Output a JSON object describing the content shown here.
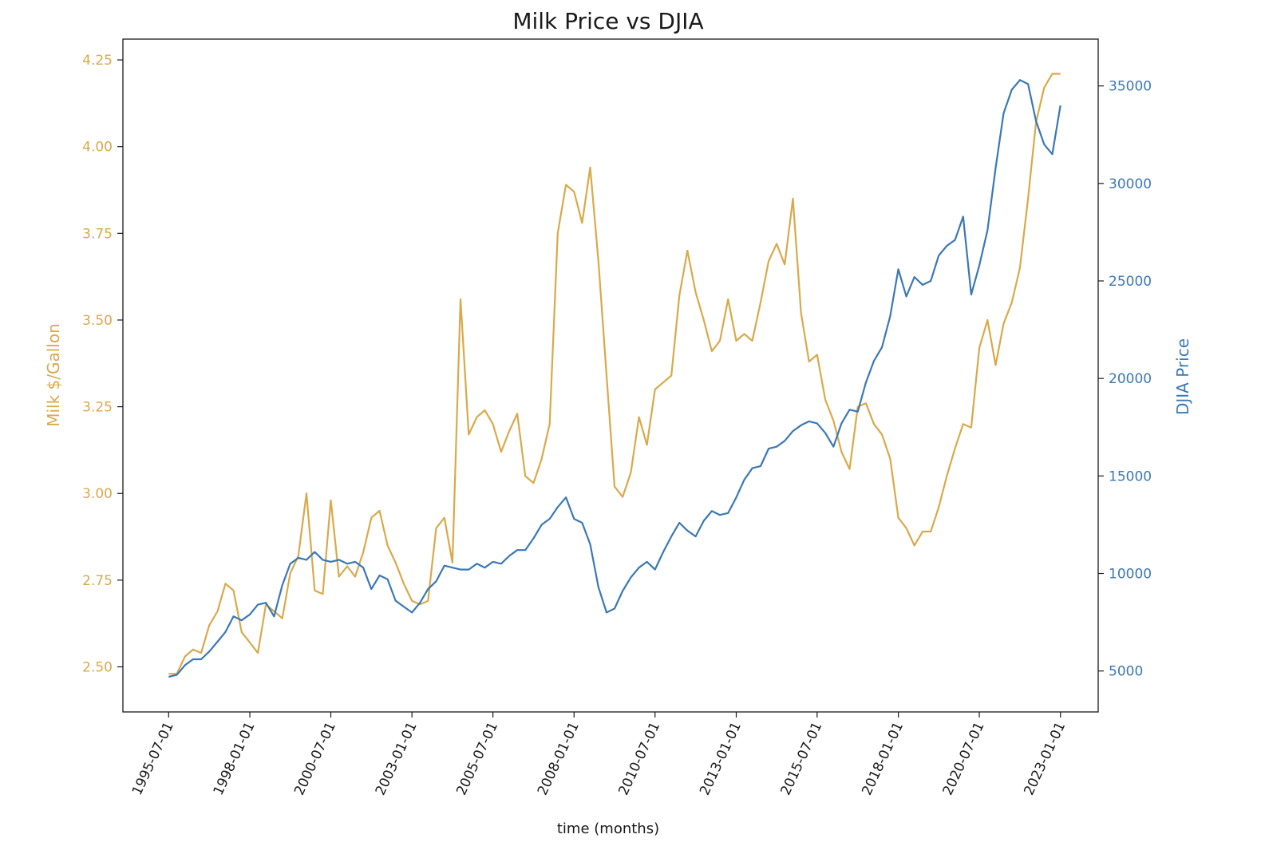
{
  "chart_data": {
    "type": "line",
    "title": "Milk Price vs DJIA",
    "xlabel": "time (months)",
    "ylabel_left": "Milk $/Gallon",
    "ylabel_right": "DJIA Price",
    "x_ticks": [
      "1995-07-01",
      "1998-01-01",
      "2000-07-01",
      "2003-01-01",
      "2005-07-01",
      "2008-01-01",
      "2010-07-01",
      "2013-01-01",
      "2015-07-01",
      "2018-01-01",
      "2020-07-01",
      "2023-01-01"
    ],
    "y_left_ticks": [
      "2.50",
      "2.75",
      "3.00",
      "3.25",
      "3.50",
      "3.75",
      "4.00",
      "4.25"
    ],
    "y_left_range": [
      2.37,
      4.31
    ],
    "y_right_ticks": [
      "5000",
      "10000",
      "15000",
      "20000",
      "25000",
      "30000",
      "35000"
    ],
    "y_right_range": [
      2900,
      37400
    ],
    "x_range": [
      "1994-02-01",
      "2024-03-01"
    ],
    "grid": false,
    "colors": {
      "milk": "#d9a94a",
      "djia": "#3a78b5",
      "axis": "#1a1a1a"
    },
    "series": [
      {
        "axis": "left",
        "color": "#d9a94a",
        "points": [
          [
            "1995-07-01",
            2.48
          ],
          [
            "1995-10-01",
            2.48
          ],
          [
            "1996-01-01",
            2.53
          ],
          [
            "1996-04-01",
            2.55
          ],
          [
            "1996-07-01",
            2.54
          ],
          [
            "1996-10-01",
            2.62
          ],
          [
            "1997-01-01",
            2.66
          ],
          [
            "1997-04-01",
            2.74
          ],
          [
            "1997-07-01",
            2.72
          ],
          [
            "1997-10-01",
            2.6
          ],
          [
            "1998-01-01",
            2.57
          ],
          [
            "1998-04-01",
            2.54
          ],
          [
            "1998-07-01",
            2.68
          ],
          [
            "1998-10-01",
            2.66
          ],
          [
            "1999-01-01",
            2.64
          ],
          [
            "1999-04-01",
            2.77
          ],
          [
            "1999-07-01",
            2.82
          ],
          [
            "1999-10-01",
            3.0
          ],
          [
            "2000-01-01",
            2.72
          ],
          [
            "2000-04-01",
            2.71
          ],
          [
            "2000-07-01",
            2.98
          ],
          [
            "2000-10-01",
            2.76
          ],
          [
            "2001-01-01",
            2.79
          ],
          [
            "2001-04-01",
            2.76
          ],
          [
            "2001-07-01",
            2.83
          ],
          [
            "2001-10-01",
            2.93
          ],
          [
            "2002-01-01",
            2.95
          ],
          [
            "2002-04-01",
            2.85
          ],
          [
            "2002-07-01",
            2.8
          ],
          [
            "2002-10-01",
            2.74
          ],
          [
            "2003-01-01",
            2.69
          ],
          [
            "2003-04-01",
            2.68
          ],
          [
            "2003-07-01",
            2.69
          ],
          [
            "2003-10-01",
            2.9
          ],
          [
            "2004-01-01",
            2.93
          ],
          [
            "2004-04-01",
            2.8
          ],
          [
            "2004-07-01",
            3.56
          ],
          [
            "2004-10-01",
            3.17
          ],
          [
            "2005-01-01",
            3.22
          ],
          [
            "2005-04-01",
            3.24
          ],
          [
            "2005-07-01",
            3.2
          ],
          [
            "2005-10-01",
            3.12
          ],
          [
            "2006-01-01",
            3.18
          ],
          [
            "2006-04-01",
            3.23
          ],
          [
            "2006-07-01",
            3.05
          ],
          [
            "2006-10-01",
            3.03
          ],
          [
            "2007-01-01",
            3.1
          ],
          [
            "2007-04-01",
            3.2
          ],
          [
            "2007-07-01",
            3.75
          ],
          [
            "2007-10-01",
            3.89
          ],
          [
            "2008-01-01",
            3.87
          ],
          [
            "2008-04-01",
            3.78
          ],
          [
            "2008-07-01",
            3.94
          ],
          [
            "2008-10-01",
            3.67
          ],
          [
            "2009-01-01",
            3.34
          ],
          [
            "2009-04-01",
            3.02
          ],
          [
            "2009-07-01",
            2.99
          ],
          [
            "2009-10-01",
            3.06
          ],
          [
            "2010-01-01",
            3.22
          ],
          [
            "2010-04-01",
            3.14
          ],
          [
            "2010-07-01",
            3.3
          ],
          [
            "2010-10-01",
            3.32
          ],
          [
            "2011-01-01",
            3.34
          ],
          [
            "2011-04-01",
            3.57
          ],
          [
            "2011-07-01",
            3.7
          ],
          [
            "2011-10-01",
            3.58
          ],
          [
            "2012-01-01",
            3.5
          ],
          [
            "2012-04-01",
            3.41
          ],
          [
            "2012-07-01",
            3.44
          ],
          [
            "2012-10-01",
            3.56
          ],
          [
            "2013-01-01",
            3.44
          ],
          [
            "2013-04-01",
            3.46
          ],
          [
            "2013-07-01",
            3.44
          ],
          [
            "2013-10-01",
            3.55
          ],
          [
            "2014-01-01",
            3.67
          ],
          [
            "2014-04-01",
            3.72
          ],
          [
            "2014-07-01",
            3.66
          ],
          [
            "2014-10-01",
            3.85
          ],
          [
            "2015-01-01",
            3.52
          ],
          [
            "2015-04-01",
            3.38
          ],
          [
            "2015-07-01",
            3.4
          ],
          [
            "2015-10-01",
            3.27
          ],
          [
            "2016-01-01",
            3.21
          ],
          [
            "2016-04-01",
            3.12
          ],
          [
            "2016-07-01",
            3.07
          ],
          [
            "2016-10-01",
            3.25
          ],
          [
            "2017-01-01",
            3.26
          ],
          [
            "2017-04-01",
            3.2
          ],
          [
            "2017-07-01",
            3.17
          ],
          [
            "2017-10-01",
            3.1
          ],
          [
            "2018-01-01",
            2.93
          ],
          [
            "2018-04-01",
            2.9
          ],
          [
            "2018-07-01",
            2.85
          ],
          [
            "2018-10-01",
            2.89
          ],
          [
            "2019-01-01",
            2.89
          ],
          [
            "2019-04-01",
            2.96
          ],
          [
            "2019-07-01",
            3.05
          ],
          [
            "2019-10-01",
            3.13
          ],
          [
            "2020-01-01",
            3.2
          ],
          [
            "2020-04-01",
            3.19
          ],
          [
            "2020-07-01",
            3.42
          ],
          [
            "2020-10-01",
            3.5
          ],
          [
            "2021-01-01",
            3.37
          ],
          [
            "2021-04-01",
            3.49
          ],
          [
            "2021-07-01",
            3.55
          ],
          [
            "2021-10-01",
            3.65
          ],
          [
            "2022-01-01",
            3.85
          ],
          [
            "2022-04-01",
            4.07
          ],
          [
            "2022-07-01",
            4.17
          ],
          [
            "2022-10-01",
            4.21
          ],
          [
            "2023-01-01",
            4.21
          ]
        ]
      },
      {
        "axis": "right",
        "color": "#3a78b5",
        "points": [
          [
            "1995-07-01",
            4700
          ],
          [
            "1995-10-01",
            4800
          ],
          [
            "1996-01-01",
            5300
          ],
          [
            "1996-04-01",
            5600
          ],
          [
            "1996-07-01",
            5600
          ],
          [
            "1996-10-01",
            6000
          ],
          [
            "1997-01-01",
            6500
          ],
          [
            "1997-04-01",
            7000
          ],
          [
            "1997-07-01",
            7800
          ],
          [
            "1997-10-01",
            7600
          ],
          [
            "1998-01-01",
            7900
          ],
          [
            "1998-04-01",
            8400
          ],
          [
            "1998-07-01",
            8500
          ],
          [
            "1998-10-01",
            7800
          ],
          [
            "1999-01-01",
            9400
          ],
          [
            "1999-04-01",
            10500
          ],
          [
            "1999-07-01",
            10800
          ],
          [
            "1999-10-01",
            10700
          ],
          [
            "2000-01-01",
            11100
          ],
          [
            "2000-04-01",
            10700
          ],
          [
            "2000-07-01",
            10600
          ],
          [
            "2000-10-01",
            10700
          ],
          [
            "2001-01-01",
            10500
          ],
          [
            "2001-04-01",
            10600
          ],
          [
            "2001-07-01",
            10300
          ],
          [
            "2001-10-01",
            9200
          ],
          [
            "2002-01-01",
            9900
          ],
          [
            "2002-04-01",
            9700
          ],
          [
            "2002-07-01",
            8600
          ],
          [
            "2002-10-01",
            8300
          ],
          [
            "2003-01-01",
            8000
          ],
          [
            "2003-04-01",
            8500
          ],
          [
            "2003-07-01",
            9200
          ],
          [
            "2003-10-01",
            9600
          ],
          [
            "2004-01-01",
            10400
          ],
          [
            "2004-04-01",
            10300
          ],
          [
            "2004-07-01",
            10200
          ],
          [
            "2004-10-01",
            10200
          ],
          [
            "2005-01-01",
            10500
          ],
          [
            "2005-04-01",
            10300
          ],
          [
            "2005-07-01",
            10600
          ],
          [
            "2005-10-01",
            10500
          ],
          [
            "2006-01-01",
            10900
          ],
          [
            "2006-04-01",
            11200
          ],
          [
            "2006-07-01",
            11200
          ],
          [
            "2006-10-01",
            11800
          ],
          [
            "2007-01-01",
            12500
          ],
          [
            "2007-04-01",
            12800
          ],
          [
            "2007-07-01",
            13400
          ],
          [
            "2007-10-01",
            13900
          ],
          [
            "2008-01-01",
            12800
          ],
          [
            "2008-04-01",
            12600
          ],
          [
            "2008-07-01",
            11500
          ],
          [
            "2008-10-01",
            9300
          ],
          [
            "2009-01-01",
            8000
          ],
          [
            "2009-04-01",
            8200
          ],
          [
            "2009-07-01",
            9100
          ],
          [
            "2009-10-01",
            9800
          ],
          [
            "2010-01-01",
            10300
          ],
          [
            "2010-04-01",
            10600
          ],
          [
            "2010-07-01",
            10200
          ],
          [
            "2010-10-01",
            11100
          ],
          [
            "2011-01-01",
            11900
          ],
          [
            "2011-04-01",
            12600
          ],
          [
            "2011-07-01",
            12200
          ],
          [
            "2011-10-01",
            11900
          ],
          [
            "2012-01-01",
            12700
          ],
          [
            "2012-04-01",
            13200
          ],
          [
            "2012-07-01",
            13000
          ],
          [
            "2012-10-01",
            13100
          ],
          [
            "2013-01-01",
            13900
          ],
          [
            "2013-04-01",
            14800
          ],
          [
            "2013-07-01",
            15400
          ],
          [
            "2013-10-01",
            15500
          ],
          [
            "2014-01-01",
            16400
          ],
          [
            "2014-04-01",
            16500
          ],
          [
            "2014-07-01",
            16800
          ],
          [
            "2014-10-01",
            17300
          ],
          [
            "2015-01-01",
            17600
          ],
          [
            "2015-04-01",
            17800
          ],
          [
            "2015-07-01",
            17700
          ],
          [
            "2015-10-01",
            17200
          ],
          [
            "2016-01-01",
            16500
          ],
          [
            "2016-04-01",
            17700
          ],
          [
            "2016-07-01",
            18400
          ],
          [
            "2016-10-01",
            18300
          ],
          [
            "2017-01-01",
            19800
          ],
          [
            "2017-04-01",
            20900
          ],
          [
            "2017-07-01",
            21600
          ],
          [
            "2017-10-01",
            23200
          ],
          [
            "2018-01-01",
            25600
          ],
          [
            "2018-04-01",
            24200
          ],
          [
            "2018-07-01",
            25200
          ],
          [
            "2018-10-01",
            24800
          ],
          [
            "2019-01-01",
            25000
          ],
          [
            "2019-04-01",
            26300
          ],
          [
            "2019-07-01",
            26800
          ],
          [
            "2019-10-01",
            27100
          ],
          [
            "2020-01-01",
            28300
          ],
          [
            "2020-04-01",
            24300
          ],
          [
            "2020-07-01",
            25800
          ],
          [
            "2020-10-01",
            27600
          ],
          [
            "2021-01-01",
            30800
          ],
          [
            "2021-04-01",
            33600
          ],
          [
            "2021-07-01",
            34800
          ],
          [
            "2021-10-01",
            35300
          ],
          [
            "2022-01-01",
            35100
          ],
          [
            "2022-04-01",
            33200
          ],
          [
            "2022-07-01",
            32000
          ],
          [
            "2022-10-01",
            31500
          ],
          [
            "2023-01-01",
            34000
          ]
        ]
      }
    ]
  }
}
